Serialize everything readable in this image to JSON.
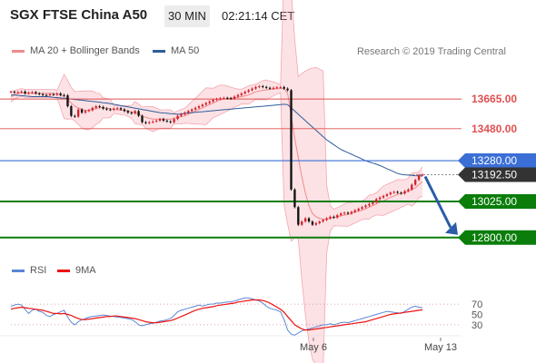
{
  "header": {
    "title": "SGX FTSE China A50",
    "timeframe": "30 MIN",
    "time": "02:21:14 CET"
  },
  "legend_main": [
    {
      "name": "MA 20 + Bollinger Bands",
      "color": "#f08a8a"
    },
    {
      "name": "MA 50",
      "color": "#2e5d9a"
    }
  ],
  "watermark": "Research © 2019 Trading Central",
  "legend_rsi": [
    {
      "name": "RSI",
      "color": "#5b86d6"
    },
    {
      "name": "9MA",
      "color": "#ee1111"
    }
  ],
  "colors": {
    "up": "#d4202b",
    "down": "#111111",
    "resistance": "#e05050",
    "pivot": "#3b6fd6",
    "support": "#0a7d0a",
    "last": "#333333",
    "arrow": "#2a5ca8"
  },
  "chart_data": {
    "type": "candlestick",
    "ylim": [
      12640,
      14000
    ],
    "levels": [
      {
        "value": 13665,
        "label": "13665.00",
        "kind": "resistance"
      },
      {
        "value": 13480,
        "label": "13480.00",
        "kind": "resistance"
      },
      {
        "value": 13280,
        "label": "13280.00",
        "kind": "pivot"
      },
      {
        "value": 13192.5,
        "label": "13192.50",
        "kind": "last"
      },
      {
        "value": 13025,
        "label": "13025.00",
        "kind": "support"
      },
      {
        "value": 12800,
        "label": "12800.00",
        "kind": "support"
      }
    ],
    "x_ticks": [
      "May 6",
      "May 13"
    ],
    "closes": [
      13710,
      13705,
      13708,
      13712,
      13700,
      13705,
      13708,
      13700,
      13695,
      13690,
      13688,
      13695,
      13692,
      13700,
      13690,
      13688,
      13620,
      13560,
      13555,
      13600,
      13580,
      13590,
      13595,
      13610,
      13620,
      13615,
      13605,
      13600,
      13598,
      13605,
      13608,
      13600,
      13590,
      13580,
      13575,
      13590,
      13560,
      13520,
      13515,
      13520,
      13525,
      13530,
      13540,
      13530,
      13525,
      13520,
      13540,
      13560,
      13570,
      13580,
      13590,
      13600,
      13610,
      13620,
      13630,
      13640,
      13650,
      13660,
      13665,
      13670,
      13672,
      13670,
      13668,
      13680,
      13690,
      13700,
      13710,
      13720,
      13730,
      13740,
      13745,
      13740,
      13735,
      13730,
      13735,
      13738,
      13740,
      13730,
      13720,
      13100,
      12990,
      12880,
      12900,
      12920,
      12900,
      12880,
      12890,
      12900,
      12910,
      12920,
      12930,
      12925,
      12940,
      12950,
      12955,
      12950,
      12960,
      12970,
      12980,
      12990,
      13000,
      13010,
      13020,
      13040,
      13050,
      13060,
      13070,
      13080,
      13085,
      13080,
      13075,
      13090,
      13100,
      13130,
      13160,
      13190,
      13192.5
    ],
    "ma20": [
      13680,
      13690,
      13700,
      13705,
      13700,
      13700,
      13700,
      13700,
      13700,
      13700,
      13700,
      13700,
      13700,
      13695,
      13690,
      13680,
      13660,
      13640,
      13620,
      13610,
      13600,
      13595,
      13595,
      13600,
      13605,
      13610,
      13610,
      13608,
      13605,
      13600,
      13598,
      13595,
      13595,
      13590,
      13585,
      13580,
      13570,
      13560,
      13550,
      13545,
      13540,
      13540,
      13540,
      13540,
      13540,
      13540,
      13545,
      13550,
      13555,
      13560,
      13570,
      13580,
      13590,
      13600,
      13610,
      13620,
      13630,
      13640,
      13650,
      13660,
      13665,
      13668,
      13670,
      13672,
      13675,
      13680,
      13685,
      13690,
      13700,
      13710,
      13715,
      13720,
      13722,
      13725,
      13728,
      13730,
      13730,
      13730,
      13700,
      13560,
      13420,
      13300,
      13180,
      13080,
      13000,
      12950,
      12930,
      12920,
      12915,
      12915,
      12920,
      12925,
      12930,
      12935,
      12940,
      12945,
      12950,
      12960,
      12965,
      12970,
      12980,
      12990,
      13000,
      13010,
      13020,
      13030,
      13040,
      13050,
      13060,
      13070,
      13075,
      13080,
      13090,
      13100,
      13110,
      13130,
      13150
    ],
    "ma50": [
      13690,
      13690,
      13688,
      13686,
      13684,
      13682,
      13680,
      13680,
      13680,
      13680,
      13680,
      13678,
      13676,
      13674,
      13672,
      13670,
      13668,
      13665,
      13662,
      13660,
      13658,
      13655,
      13652,
      13650,
      13648,
      13645,
      13642,
      13640,
      13636,
      13632,
      13628,
      13624,
      13620,
      13616,
      13612,
      13608,
      13604,
      13600,
      13596,
      13592,
      13588,
      13584,
      13580,
      13578,
      13576,
      13574,
      13572,
      13570,
      13572,
      13575,
      13578,
      13580,
      13582,
      13584,
      13586,
      13588,
      13590,
      13592,
      13594,
      13596,
      13598,
      13600,
      13602,
      13604,
      13606,
      13608,
      13610,
      13612,
      13614,
      13616,
      13618,
      13620,
      13622,
      13624,
      13626,
      13628,
      13630,
      13632,
      13630,
      13610,
      13590,
      13570,
      13550,
      13530,
      13510,
      13490,
      13470,
      13450,
      13430,
      13410,
      13395,
      13380,
      13365,
      13350,
      13340,
      13330,
      13320,
      13310,
      13300,
      13290,
      13280,
      13272,
      13265,
      13258,
      13250,
      13240,
      13230,
      13220,
      13210,
      13200,
      13195,
      13192,
      13190,
      13188,
      13186,
      13185,
      13184
    ],
    "rsi": {
      "ylim": [
        0,
        100
      ],
      "ticks": [
        "70",
        "50",
        "30"
      ],
      "levels": [
        70,
        30
      ],
      "rsi": [
        66,
        68,
        70,
        68,
        60,
        52,
        58,
        60,
        56,
        54,
        48,
        46,
        50,
        52,
        55,
        58,
        45,
        35,
        30,
        36,
        40,
        42,
        45,
        46,
        47,
        48,
        49,
        48,
        47,
        46,
        45,
        44,
        43,
        42,
        40,
        36,
        30,
        28,
        30,
        32,
        33,
        35,
        37,
        38,
        40,
        42,
        48,
        55,
        58,
        60,
        62,
        64,
        66,
        68,
        66,
        68,
        70,
        70,
        72,
        72,
        73,
        74,
        74,
        76,
        78,
        80,
        82,
        82,
        80,
        78,
        76,
        72,
        66,
        62,
        60,
        58,
        55,
        40,
        20,
        12,
        10,
        14,
        18,
        20,
        22,
        24,
        26,
        28,
        30,
        30,
        32,
        30,
        32,
        34,
        35,
        34,
        36,
        38,
        40,
        42,
        44,
        46,
        48,
        50,
        52,
        54,
        56,
        55,
        54,
        53,
        52,
        56,
        60,
        64,
        66,
        64,
        63
      ],
      "ma9": [
        60,
        62,
        63,
        64,
        63,
        62,
        61,
        60,
        59,
        58,
        56,
        54,
        52,
        52,
        51,
        52,
        50,
        48,
        45,
        42,
        40,
        40,
        41,
        42,
        43,
        44,
        45,
        46,
        46,
        47,
        47,
        46,
        45,
        44,
        43,
        42,
        40,
        38,
        36,
        35,
        34,
        34,
        35,
        36,
        37,
        38,
        40,
        43,
        46,
        49,
        52,
        55,
        58,
        60,
        62,
        63,
        64,
        65,
        67,
        68,
        69,
        70,
        71,
        72,
        74,
        75,
        76,
        77,
        78,
        78,
        78,
        77,
        75,
        72,
        68,
        64,
        60,
        54,
        46,
        38,
        30,
        26,
        22,
        20,
        20,
        21,
        22,
        23,
        24,
        25,
        26,
        27,
        28,
        29,
        30,
        31,
        32,
        33,
        34,
        35,
        36,
        38,
        40,
        42,
        44,
        46,
        48,
        50,
        51,
        52,
        53,
        54,
        55,
        56,
        57,
        58,
        59
      ]
    }
  }
}
